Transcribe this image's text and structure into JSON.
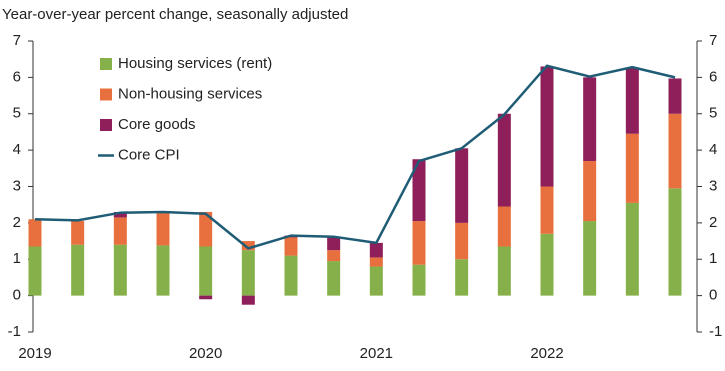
{
  "chart_data": {
    "type": "bar",
    "stacked": true,
    "title": "Year-over-year percent change, seasonally adjusted",
    "categories": [
      "2019",
      null,
      null,
      null,
      "2020",
      null,
      null,
      null,
      "2021",
      null,
      null,
      null,
      "2022",
      null,
      null,
      null
    ],
    "series": [
      {
        "name": "Housing services (rent)",
        "color": "#86b04a",
        "values": [
          1.35,
          1.4,
          1.4,
          1.38,
          1.35,
          1.25,
          1.1,
          0.95,
          0.8,
          0.85,
          1.0,
          1.35,
          1.7,
          2.05,
          2.55,
          2.95
        ]
      },
      {
        "name": "Non-housing services",
        "color": "#e8703f",
        "values": [
          0.75,
          0.65,
          0.75,
          0.92,
          0.95,
          0.25,
          0.5,
          0.3,
          0.25,
          1.2,
          1.0,
          1.1,
          1.3,
          1.65,
          1.9,
          2.05
        ]
      },
      {
        "name": "Core goods",
        "color": "#8e1f5b",
        "values": [
          0,
          0,
          0.15,
          0,
          -0.1,
          -0.25,
          0.05,
          0.35,
          0.4,
          1.7,
          2.05,
          2.55,
          3.3,
          2.3,
          1.8,
          0.97
        ]
      },
      {
        "name": "Core CPI",
        "color": "#1f5c75",
        "type": "line",
        "values": [
          2.1,
          2.07,
          2.28,
          2.3,
          2.25,
          1.3,
          1.65,
          1.62,
          1.45,
          3.7,
          4.05,
          4.98,
          6.32,
          6.02,
          6.28,
          6.0
        ]
      }
    ],
    "ylim": [
      -1,
      7
    ],
    "yticks": [
      -1,
      0,
      1,
      2,
      3,
      4,
      5,
      6,
      7
    ],
    "y2lim": [
      -1,
      7
    ],
    "y2ticks": [
      -1,
      0,
      1,
      2,
      3,
      4,
      5,
      6,
      7
    ],
    "legend": "upper-left"
  }
}
